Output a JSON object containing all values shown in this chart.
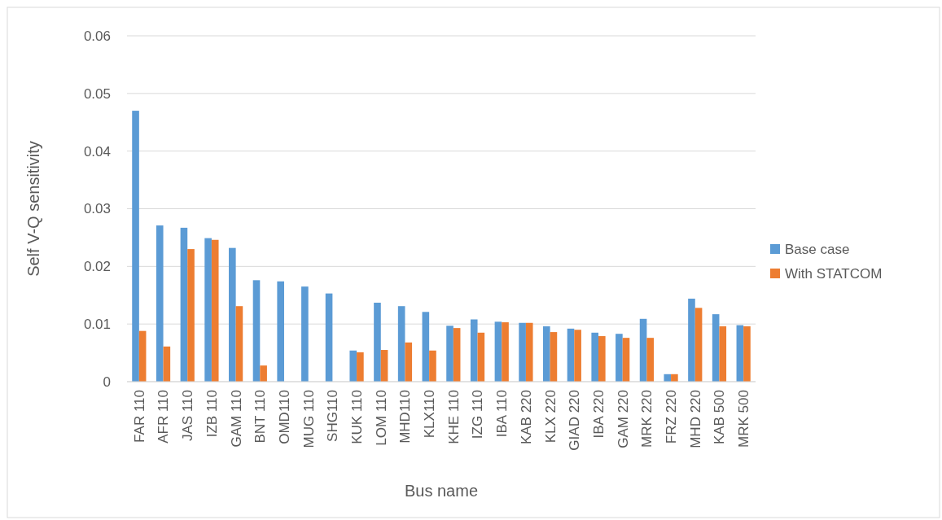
{
  "chart_data": {
    "type": "bar",
    "xlabel": "Bus name",
    "ylabel": "Self V-Q sensitivity",
    "categories": [
      "FAR 110",
      "AFR 110",
      "JAS 110",
      "IZB 110",
      "GAM 110",
      "BNT 110",
      "OMD110",
      "MUG 110",
      "SHG110",
      "KUK 110",
      "LOM 110",
      "MHD110",
      "KLX110",
      "KHE 110",
      "IZG 110",
      "IBA 110",
      "KAB 220",
      "KLX 220",
      "GIAD 220",
      "IBA 220",
      "GAM 220",
      "MRK 220",
      "FRZ 220",
      "MHD 220",
      "KAB 500",
      "MRK 500"
    ],
    "series": [
      {
        "name": "Base case",
        "color": "#5b9bd5",
        "values": [
          0.047,
          0.0271,
          0.0267,
          0.0249,
          0.0232,
          0.0176,
          0.0174,
          0.0165,
          0.0153,
          0.0054,
          0.0137,
          0.0131,
          0.0121,
          0.0097,
          0.0108,
          0.0104,
          0.0102,
          0.0096,
          0.0092,
          0.0085,
          0.0083,
          0.0109,
          0.0013,
          0.0144,
          0.0117,
          0.0098
        ]
      },
      {
        "name": "With STATCOM",
        "color": "#ed7d31",
        "values": [
          0.0088,
          0.0061,
          0.023,
          0.0246,
          0.0131,
          0.0028,
          0,
          0,
          0,
          0.0051,
          0.0055,
          0.0068,
          0.0054,
          0.0093,
          0.0085,
          0.0103,
          0.0102,
          0.0086,
          0.009,
          0.0079,
          0.0076,
          0.0076,
          0.0013,
          0.0128,
          0.0096,
          0.0096
        ]
      }
    ],
    "ylim": [
      0,
      0.06
    ],
    "yticks": [
      0,
      0.01,
      0.02,
      0.03,
      0.04,
      0.05,
      0.06
    ],
    "grid": "y",
    "legend": "right"
  }
}
